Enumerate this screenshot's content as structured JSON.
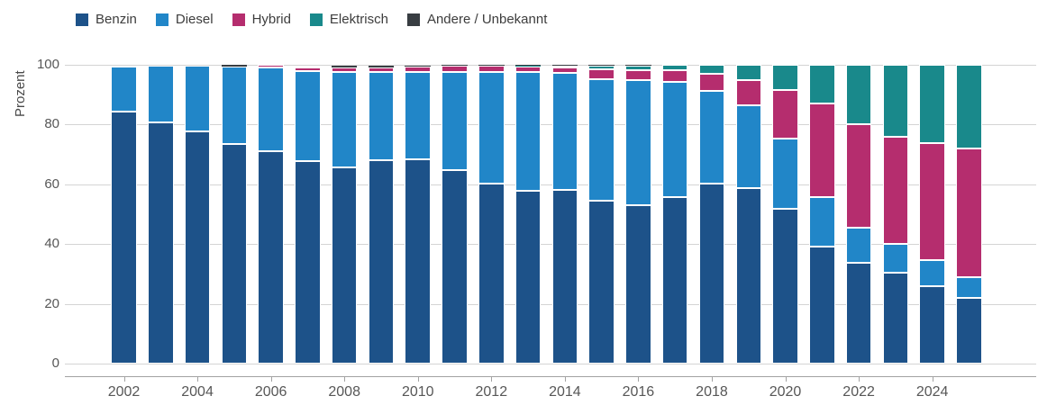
{
  "chart_data": {
    "type": "bar",
    "stacked": true,
    "title": "",
    "ylabel": "Prozent",
    "xlabel": "",
    "ylim": [
      0,
      100
    ],
    "yticks": [
      0,
      20,
      40,
      60,
      80,
      100
    ],
    "grid": "horizontal",
    "legend_position": "top-left",
    "categories": [
      "2002",
      "2003",
      "2004",
      "2005",
      "2006",
      "2007",
      "2008",
      "2009",
      "2010",
      "2011",
      "2012",
      "2013",
      "2014",
      "2015",
      "2016",
      "2017",
      "2018",
      "2019",
      "2020",
      "2021",
      "2022",
      "2023",
      "2024",
      "2025"
    ],
    "xtick_labels": [
      "2002",
      "2004",
      "2006",
      "2008",
      "2010",
      "2012",
      "2014",
      "2016",
      "2018",
      "2020",
      "2022",
      "2024"
    ],
    "series": [
      {
        "name": "Benzin",
        "color": "#1d5289",
        "values": [
          84.4,
          80.6,
          77.8,
          73.6,
          71.2,
          67.8,
          65.7,
          68.1,
          68.4,
          64.7,
          60.1,
          57.7,
          58.2,
          54.4,
          53.0,
          55.6,
          60.2,
          58.7,
          51.9,
          39.1,
          33.6,
          30.4,
          25.8,
          21.9
        ]
      },
      {
        "name": "Diesel",
        "color": "#2186c8",
        "values": [
          15.1,
          19.2,
          21.8,
          25.7,
          27.8,
          30.0,
          31.8,
          29.4,
          29.3,
          33.0,
          37.6,
          39.9,
          39.0,
          40.8,
          41.8,
          38.6,
          31.2,
          27.8,
          23.4,
          16.6,
          11.8,
          9.8,
          8.7,
          7.1
        ]
      },
      {
        "name": "Hybrid",
        "color": "#b52d6e",
        "values": [
          0,
          0,
          0,
          0,
          0.9,
          1.2,
          1.5,
          1.7,
          1.8,
          2.1,
          2.0,
          1.9,
          1.8,
          3.2,
          3.4,
          4.0,
          5.6,
          8.5,
          16.2,
          31.2,
          34.6,
          35.6,
          39.3,
          43.1
        ]
      },
      {
        "name": "Elektrisch",
        "color": "#19898b",
        "values": [
          0,
          0,
          0,
          0,
          0,
          0,
          0,
          0,
          0,
          0,
          0.1,
          0.3,
          0.8,
          1.3,
          1.6,
          1.7,
          3.0,
          5.0,
          8.4,
          13.0,
          19.9,
          24.1,
          26.1,
          27.8
        ]
      },
      {
        "name": "Andere / Unbekannt",
        "color": "#383d42",
        "values": [
          0,
          0,
          0,
          0.6,
          0.1,
          0.8,
          0.6,
          0.5,
          0.3,
          0.2,
          0.2,
          0.2,
          0.2,
          0.3,
          0.2,
          0.1,
          0,
          0,
          0.1,
          0.1,
          0.1,
          0.1,
          0.1,
          0.1
        ]
      }
    ]
  }
}
